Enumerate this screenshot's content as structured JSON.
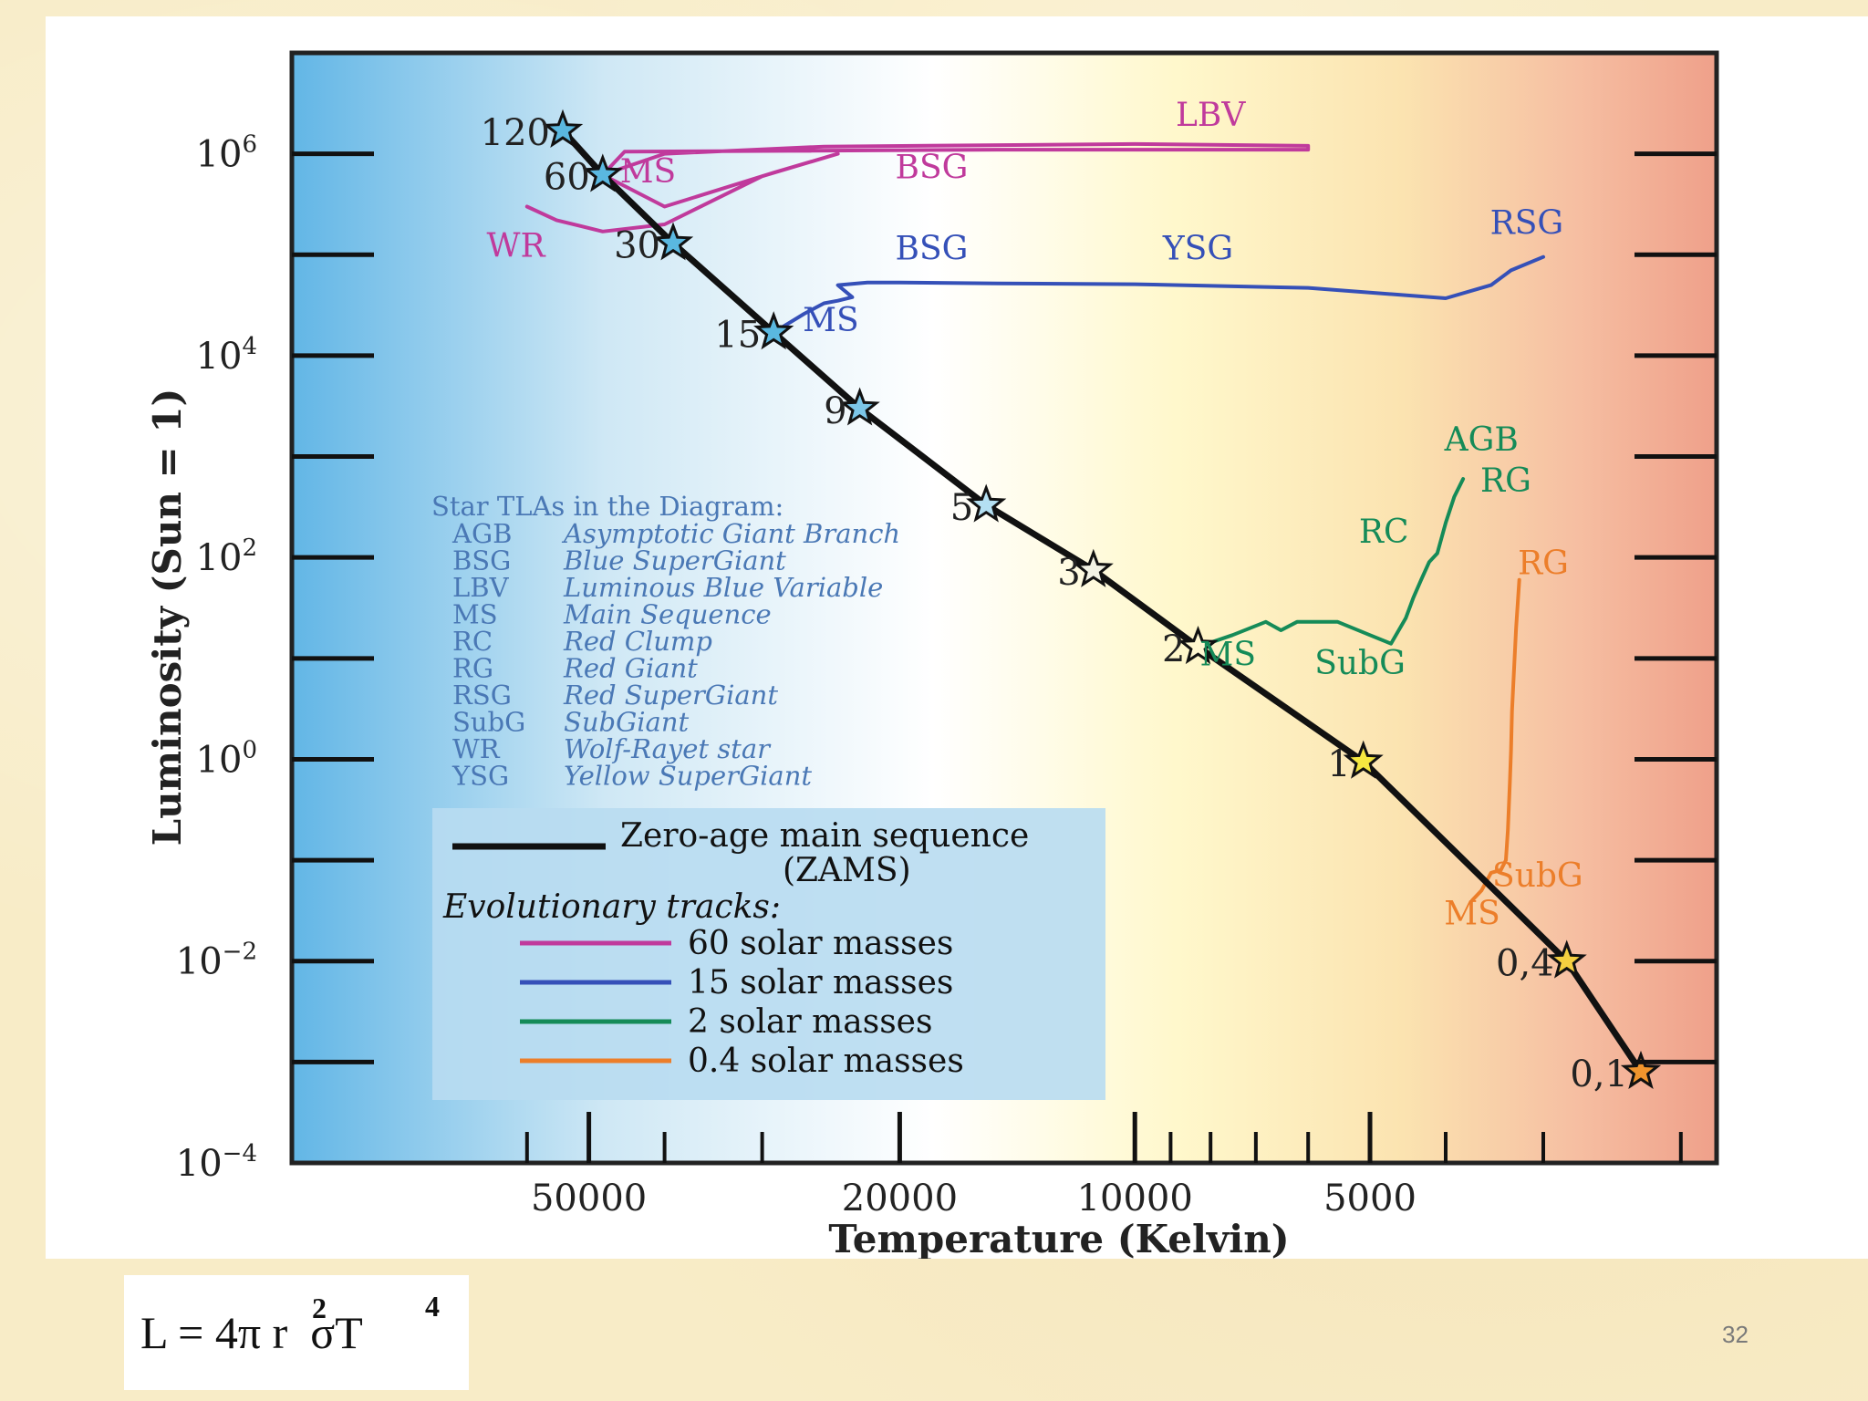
{
  "chart_data": {
    "type": "line",
    "title": "",
    "xlabel": "Temperature (Kelvin)",
    "ylabel": "Luminosity (Sun = 1)",
    "x_scale": "log-reversed",
    "y_scale": "log",
    "xlim": [
      120000,
      1800
    ],
    "ylim": [
      0.0001,
      10000000
    ],
    "x_ticks": [
      {
        "value": 50000,
        "label": "50000"
      },
      {
        "value": 20000,
        "label": "20000"
      },
      {
        "value": 10000,
        "label": "10000"
      },
      {
        "value": 5000,
        "label": "5000"
      }
    ],
    "y_ticks": [
      {
        "value": 1000000,
        "base": "10",
        "exp": "6"
      },
      {
        "value": 10000,
        "base": "10",
        "exp": "4"
      },
      {
        "value": 100,
        "base": "10",
        "exp": "2"
      },
      {
        "value": 1,
        "base": "10",
        "exp": "0"
      },
      {
        "value": 0.01,
        "base": "10",
        "exp": "−2"
      },
      {
        "value": 0.0001,
        "base": "10",
        "exp": "−4"
      }
    ],
    "background_gradient": [
      "#62b6e6",
      "#cfe8f5",
      "#ffffff",
      "#fff8cc",
      "#fbe3b0",
      "#f6bfa2",
      "#efa08a"
    ],
    "zams": {
      "name": "Zero-age main sequence (ZAMS)",
      "color": "#111111",
      "points": [
        {
          "T": 54000,
          "L": 1700000,
          "mass": "120",
          "star_color": "#5ab8e0"
        },
        {
          "T": 48000,
          "L": 620000,
          "mass": "60",
          "star_color": "#5ab8e0"
        },
        {
          "T": 39000,
          "L": 130000,
          "mass": "30",
          "star_color": "#5ab8e0"
        },
        {
          "T": 29000,
          "L": 17000,
          "mass": "15",
          "star_color": "#5ab8e0"
        },
        {
          "T": 22500,
          "L": 3000,
          "mass": "9",
          "star_color": "#7cc6e8"
        },
        {
          "T": 15500,
          "L": 330,
          "mass": "5",
          "star_color": "#b4e0f2"
        },
        {
          "T": 11300,
          "L": 75,
          "mass": "3",
          "star_color": "#f2f2e4"
        },
        {
          "T": 8300,
          "L": 13,
          "mass": "2",
          "star_color": "#fff7d0"
        },
        {
          "T": 5100,
          "L": 0.95,
          "mass": "1",
          "star_color": "#f5e840"
        },
        {
          "T": 2800,
          "L": 0.01,
          "mass": "0,4",
          "star_color": "#f5d040"
        },
        {
          "T": 2250,
          "L": 0.0008,
          "mass": "0,1",
          "star_color": "#f0952d"
        }
      ]
    },
    "series": [
      {
        "name": "60 solar masses",
        "color": "#c03a9c",
        "points": [
          [
            48000,
            620000
          ],
          [
            40000,
            1000000
          ],
          [
            25000,
            1180000
          ],
          [
            10000,
            1250000
          ],
          [
            6000,
            1200000
          ],
          [
            6000,
            1100000
          ],
          [
            15000,
            1100000
          ],
          [
            45000,
            1050000
          ],
          [
            48000,
            620000
          ],
          [
            40000,
            300000
          ],
          [
            29000,
            650000
          ],
          [
            24000,
            1000000
          ],
          [
            30000,
            600000
          ],
          [
            40000,
            200000
          ],
          [
            48000,
            170000
          ],
          [
            55000,
            220000
          ],
          [
            60000,
            300000
          ]
        ],
        "labels": [
          {
            "text": "LBV",
            "T": 8000,
            "L": 1900000
          },
          {
            "text": "MS",
            "T": 42000,
            "L": 520000
          },
          {
            "text": "BSG",
            "T": 18200,
            "L": 570000
          },
          {
            "text": "WR",
            "T": 62000,
            "L": 95000
          }
        ]
      },
      {
        "name": "15 solar masses",
        "color": "#3550b8",
        "points": [
          [
            29000,
            17000
          ],
          [
            26500,
            26000
          ],
          [
            25000,
            33000
          ],
          [
            24000,
            35000
          ],
          [
            23000,
            38000
          ],
          [
            24000,
            50000
          ],
          [
            22000,
            53000
          ],
          [
            20000,
            53000
          ],
          [
            15000,
            52000
          ],
          [
            10000,
            51000
          ],
          [
            6000,
            47000
          ],
          [
            4000,
            37000
          ],
          [
            3500,
            50000
          ],
          [
            3300,
            70000
          ],
          [
            3000,
            95000
          ]
        ],
        "labels": [
          {
            "text": "BSG",
            "T": 18200,
            "L": 90000
          },
          {
            "text": "YSG",
            "T": 8300,
            "L": 90000
          },
          {
            "text": "RSG",
            "T": 3150,
            "L": 160000
          },
          {
            "text": "MS",
            "T": 24500,
            "L": 17500
          }
        ]
      },
      {
        "name": "2 solar masses",
        "color": "#158b58",
        "points": [
          [
            8300,
            13
          ],
          [
            7500,
            17
          ],
          [
            6800,
            23
          ],
          [
            6500,
            19
          ],
          [
            6200,
            23
          ],
          [
            6000,
            23
          ],
          [
            5500,
            23
          ],
          [
            5000,
            17
          ],
          [
            4700,
            14
          ],
          [
            4500,
            25
          ],
          [
            4400,
            40
          ],
          [
            4300,
            60
          ],
          [
            4200,
            90
          ],
          [
            4100,
            110
          ],
          [
            4000,
            220
          ],
          [
            3900,
            400
          ],
          [
            3800,
            600
          ]
        ],
        "labels": [
          {
            "text": "AGB",
            "T": 3600,
            "L": 1150
          },
          {
            "text": "RG",
            "T": 3350,
            "L": 450
          },
          {
            "text": "RC",
            "T": 4800,
            "L": 140
          },
          {
            "text": "MS",
            "T": 7600,
            "L": 8.5
          },
          {
            "text": "SubG",
            "T": 5150,
            "L": 7
          }
        ]
      },
      {
        "name": "0.4 solar masses",
        "color": "#ec7e2a",
        "points": [
          [
            3700,
            0.04
          ],
          [
            3600,
            0.05
          ],
          [
            3500,
            0.075
          ],
          [
            3400,
            0.08
          ],
          [
            3350,
            0.1
          ],
          [
            3330,
            0.2
          ],
          [
            3310,
            0.6
          ],
          [
            3300,
            1.2
          ],
          [
            3290,
            3
          ],
          [
            3270,
            8
          ],
          [
            3250,
            20
          ],
          [
            3220,
            60
          ]
        ],
        "labels": [
          {
            "text": "RG",
            "T": 3000,
            "L": 68
          },
          {
            "text": "SubG",
            "T": 3050,
            "L": 0.055
          },
          {
            "text": "MS",
            "T": 3700,
            "L": 0.023
          }
        ]
      }
    ],
    "abbreviation_table": {
      "title": "Star TLAs in the Diagram:",
      "rows": [
        {
          "abbr": "AGB",
          "desc": "Asymptotic Giant Branch"
        },
        {
          "abbr": "BSG",
          "desc": "Blue SuperGiant"
        },
        {
          "abbr": "LBV",
          "desc": "Luminous Blue Variable"
        },
        {
          "abbr": "MS",
          "desc": "Main Sequence"
        },
        {
          "abbr": "RC",
          "desc": "Red Clump"
        },
        {
          "abbr": "RG",
          "desc": "Red Giant"
        },
        {
          "abbr": "RSG",
          "desc": "Red SuperGiant"
        },
        {
          "abbr": "SubG",
          "desc": "SubGiant"
        },
        {
          "abbr": "WR",
          "desc": "Wolf-Rayet star"
        },
        {
          "abbr": "YSG",
          "desc": "Yellow SuperGiant"
        }
      ]
    },
    "legend": {
      "placement": "bottom-left",
      "zams_line1": "Zero-age main sequence",
      "zams_line2": "(ZAMS)",
      "tracks_title": "Evolutionary tracks:",
      "entries": [
        {
          "label": "60 solar masses",
          "color": "#c03a9c"
        },
        {
          "label": "15 solar masses",
          "color": "#3550b8"
        },
        {
          "label": "2 solar masses",
          "color": "#158b58"
        },
        {
          "label": "0.4 solar masses",
          "color": "#ec7e2a"
        }
      ]
    }
  },
  "formula": {
    "text": "L = 4π r  σT",
    "sup1": "2",
    "sup2": "4"
  },
  "slide": {
    "page_number": "32"
  }
}
